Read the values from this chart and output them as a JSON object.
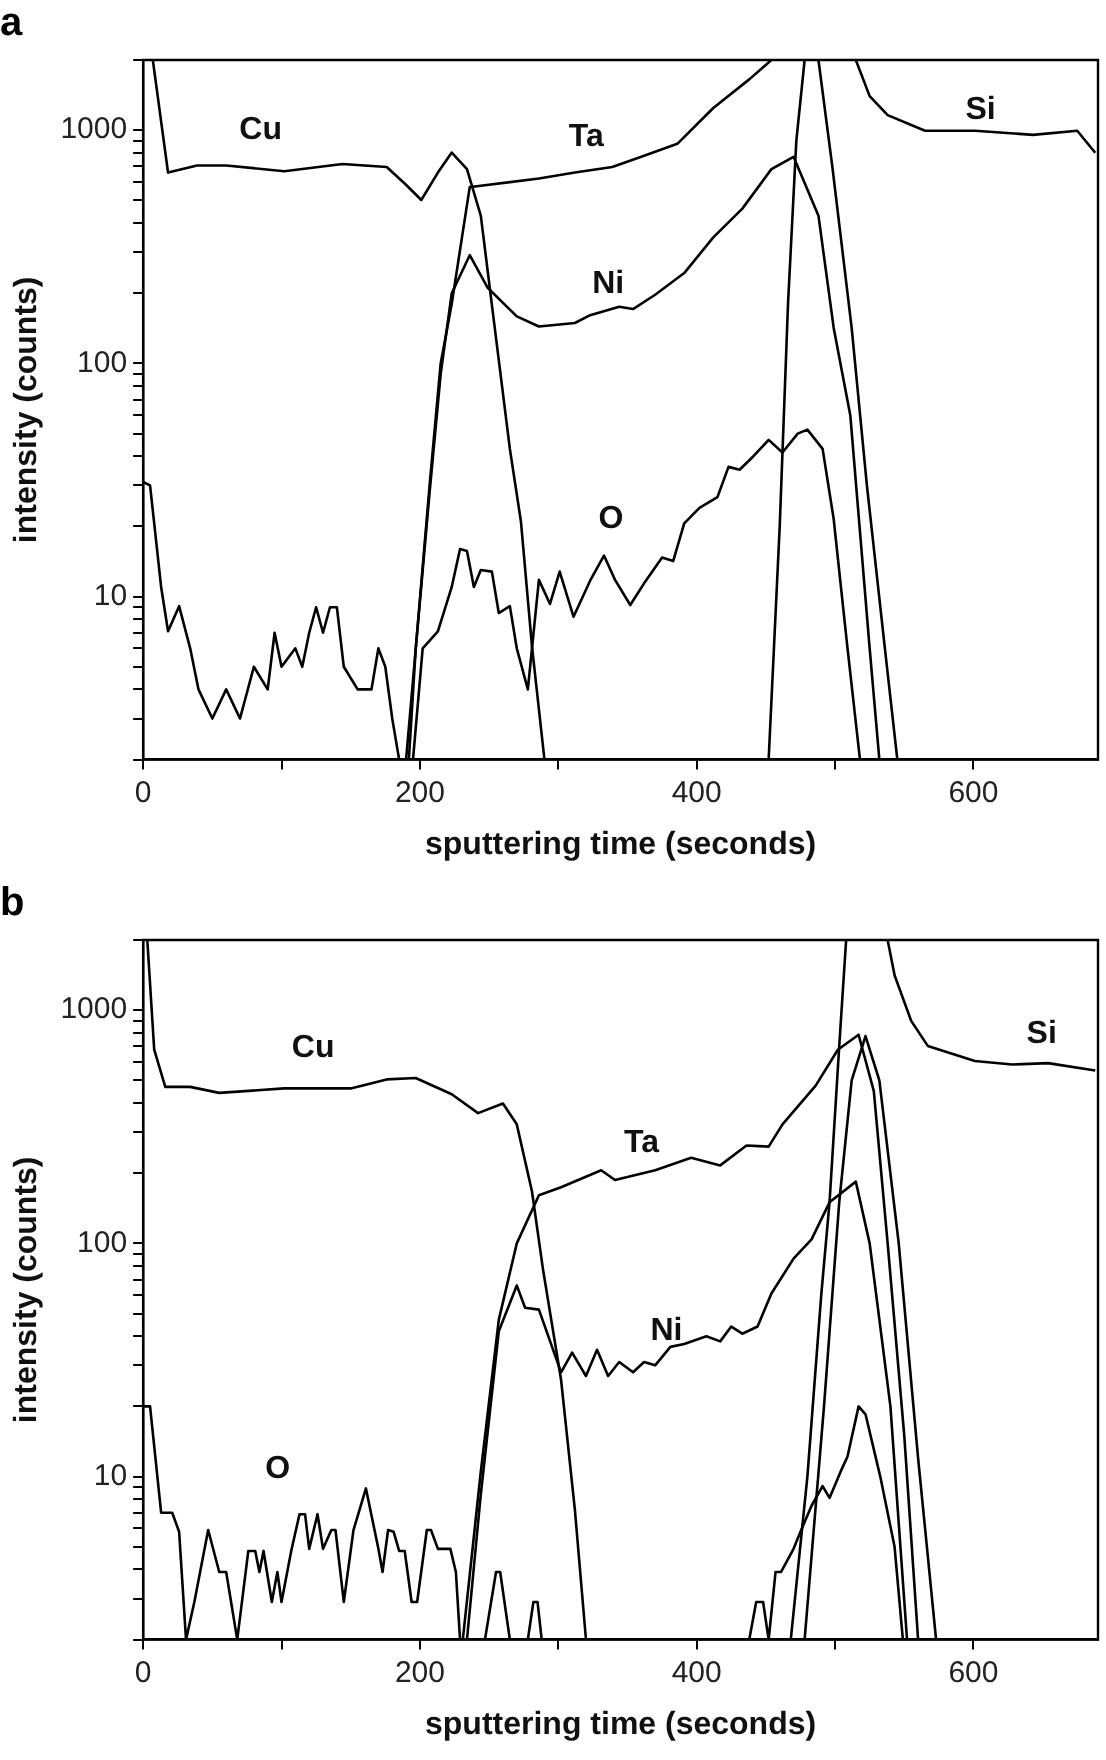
{
  "chart_data": [
    {
      "type": "line",
      "title": "a",
      "xlabel": "sputtering time (seconds)",
      "ylabel": "intensity (counts)",
      "log": "y",
      "marker": "none",
      "line_style": "solid",
      "xlim": [
        0,
        690
      ],
      "xticks": [
        0,
        {
          "value": 100,
          "label": null
        },
        200,
        {
          "value": 300,
          "label": null
        },
        400,
        {
          "value": 500,
          "label": null
        },
        600
      ],
      "ylim": [
        2,
        2000
      ],
      "yticks": [
        {
          "value": 2,
          "label": null
        },
        {
          "value": 3,
          "label": null
        },
        {
          "value": 4,
          "label": null
        },
        {
          "value": 5,
          "label": null
        },
        {
          "value": 6,
          "label": null
        },
        {
          "value": 7,
          "label": null
        },
        {
          "value": 8,
          "label": null
        },
        {
          "value": 9,
          "label": null
        },
        10,
        {
          "value": 20,
          "label": null
        },
        {
          "value": 30,
          "label": null
        },
        {
          "value": 40,
          "label": null
        },
        {
          "value": 50,
          "label": null
        },
        {
          "value": 60,
          "label": null
        },
        {
          "value": 70,
          "label": null
        },
        {
          "value": 80,
          "label": null
        },
        {
          "value": 90,
          "label": null
        },
        100,
        {
          "value": 200,
          "label": null
        },
        {
          "value": 300,
          "label": null
        },
        {
          "value": 400,
          "label": null
        },
        {
          "value": 500,
          "label": null
        },
        {
          "value": 600,
          "label": null
        },
        {
          "value": 700,
          "label": null
        },
        {
          "value": 800,
          "label": null
        },
        {
          "value": 900,
          "label": null
        },
        1000,
        {
          "value": 2000,
          "label": null
        }
      ],
      "series": [
        {
          "name": "Cu",
          "color": "#000000",
          "x": [
            7,
            18,
            39,
            60,
            102,
            144,
            176,
            189,
            201,
            213,
            223,
            234,
            244,
            253,
            265,
            273,
            281,
            290
          ],
          "values": [
            2000,
            658,
            706,
            706,
            667,
            716,
            695,
            591,
            502,
            658,
            802,
            681,
            430,
            160,
            43,
            21,
            6.1,
            2
          ]
        },
        {
          "name": "Ta",
          "color": "#000000",
          "x": [
            190,
            197,
            207,
            215,
            223,
            236,
            244,
            286,
            312,
            339,
            360,
            386,
            412,
            438,
            454,
            470,
            488,
            498,
            512,
            523,
            536,
            545
          ],
          "values": [
            2,
            6,
            30,
            100,
            180,
            570,
            578,
            621,
            658,
            695,
            769,
            874,
            1245,
            1652,
            2000,
            null,
            2000,
            700,
            142,
            30,
            6,
            2
          ]
        },
        {
          "name": "Ni",
          "color": "#000000",
          "x": [
            192,
            197,
            207,
            215,
            223,
            236,
            249,
            270,
            286,
            312,
            323,
            344,
            354,
            370,
            391,
            412,
            433,
            454,
            470,
            488,
            499,
            511,
            525,
            532
          ],
          "values": [
            2,
            6,
            28,
            90,
            200,
            291,
            211,
            159,
            144,
            149,
            161,
            175,
            171,
            197,
            244,
            347,
            461,
            681,
            769,
            430,
            142,
            60,
            6,
            2
          ]
        },
        {
          "name": "O",
          "color": "#000000",
          "x": [
            0,
            5,
            13,
            18,
            26,
            34,
            40,
            50,
            60,
            70,
            80,
            90,
            95,
            100,
            110,
            115,
            120,
            125,
            130,
            135,
            140,
            145,
            155,
            165,
            170,
            175,
            180,
            185,
            195,
            202,
            213,
            223,
            229,
            234,
            239,
            244,
            252,
            257,
            265,
            270,
            278,
            286,
            294,
            301,
            311,
            323,
            333,
            341,
            352,
            362,
            375,
            383,
            391,
            402,
            415,
            423,
            431,
            441,
            452,
            462,
            473,
            480,
            491,
            499,
            509,
            518
          ],
          "values": [
            31,
            30,
            11,
            7.1,
            9.1,
            6,
            4,
            3,
            4,
            3,
            5,
            4,
            7,
            5,
            6,
            5,
            7,
            9,
            7,
            9,
            9,
            5,
            4,
            4,
            6,
            5,
            3,
            2,
            2,
            6,
            7.1,
            11,
            16,
            15.7,
            11,
            13,
            12.8,
            8.5,
            9.1,
            6,
            4,
            11.8,
            9.3,
            12.8,
            8.2,
            11.7,
            15,
            11.8,
            9.2,
            11.4,
            14.7,
            14.2,
            20.6,
            24,
            26.7,
            36,
            35,
            40,
            47,
            41.5,
            50,
            52,
            43,
            21.5,
            6,
            2
          ]
        },
        {
          "name": "Si",
          "color": "#000000",
          "x": [
            452,
            460,
            466,
            472,
            478,
            496,
            515,
            525,
            538,
            565,
            601,
            643,
            675,
            688
          ],
          "values": [
            2,
            20,
            180,
            900,
            2000,
            null,
            2000,
            1400,
            1160,
            995,
            995,
            955,
            995,
            800
          ]
        }
      ]
    },
    {
      "type": "line",
      "title": "b",
      "xlabel": "sputtering time (seconds)",
      "ylabel": "intensity (counts)",
      "log": "y",
      "marker": "none",
      "line_style": "solid",
      "xlim": [
        0,
        690
      ],
      "xticks": [
        0,
        {
          "value": 100,
          "label": null
        },
        200,
        {
          "value": 300,
          "label": null
        },
        400,
        {
          "value": 500,
          "label": null
        },
        600
      ],
      "ylim": [
        2,
        2000
      ],
      "yticks": [
        {
          "value": 2,
          "label": null
        },
        {
          "value": 3,
          "label": null
        },
        {
          "value": 4,
          "label": null
        },
        {
          "value": 5,
          "label": null
        },
        {
          "value": 6,
          "label": null
        },
        {
          "value": 7,
          "label": null
        },
        {
          "value": 8,
          "label": null
        },
        {
          "value": 9,
          "label": null
        },
        10,
        {
          "value": 20,
          "label": null
        },
        {
          "value": 30,
          "label": null
        },
        {
          "value": 40,
          "label": null
        },
        {
          "value": 50,
          "label": null
        },
        {
          "value": 60,
          "label": null
        },
        {
          "value": 70,
          "label": null
        },
        {
          "value": 80,
          "label": null
        },
        {
          "value": 90,
          "label": null
        },
        100,
        {
          "value": 200,
          "label": null
        },
        {
          "value": 300,
          "label": null
        },
        {
          "value": 400,
          "label": null
        },
        {
          "value": 500,
          "label": null
        },
        {
          "value": 600,
          "label": null
        },
        {
          "value": 700,
          "label": null
        },
        {
          "value": 800,
          "label": null
        },
        {
          "value": 900,
          "label": null
        },
        1000,
        {
          "value": 2000,
          "label": null
        }
      ],
      "series": [
        {
          "name": "Cu",
          "color": "#000000",
          "x": [
            3,
            8,
            16,
            34,
            55,
            102,
            150,
            176,
            197,
            223,
            242,
            260,
            270,
            281,
            289,
            302,
            312,
            320
          ],
          "values": [
            2000,
            677,
            469,
            469,
            442,
            462,
            462,
            505,
            512,
            436,
            362,
            398,
            324,
            167,
            77,
            26,
            7.2,
            2
          ]
        },
        {
          "name": "Ta",
          "color": "#000000",
          "x": [
            231,
            244,
            257,
            270,
            286,
            302,
            331,
            341,
            370,
            396,
            417,
            436,
            452,
            462,
            486,
            502,
            517,
            528,
            538,
            550,
            560
          ],
          "values": [
            2,
            10.5,
            47,
            100,
            161,
            174,
            206,
            187,
            206,
            233,
            216,
            263,
            260,
            324,
            475,
            677,
            785,
            450,
            100,
            15,
            2
          ]
        },
        {
          "name": "Ni",
          "color": "#000000",
          "x": [
            234,
            244,
            257,
            270,
            276,
            286,
            302,
            310,
            320,
            328,
            336,
            344,
            354,
            362,
            370,
            381,
            391,
            407,
            417,
            425,
            433,
            444,
            454,
            470,
            483,
            496,
            515,
            525,
            540,
            552
          ],
          "values": [
            2,
            8.4,
            42,
            66,
            53,
            52,
            28,
            34,
            27,
            35,
            27,
            31,
            28,
            31,
            30,
            36,
            37,
            40,
            38,
            44,
            41,
            44,
            61,
            86,
            104,
            150,
            184,
            100,
            20,
            2
          ]
        },
        {
          "name": "O",
          "color": "#000000",
          "x": [
            0,
            5,
            13,
            21,
            26,
            31,
            37,
            47,
            55,
            60,
            68,
            76,
            81,
            84,
            87,
            93,
            97,
            100,
            107,
            113,
            117,
            120,
            126,
            130,
            136,
            139,
            145,
            152,
            161,
            170,
            173,
            177,
            181,
            185,
            189,
            194,
            198,
            205,
            208,
            213,
            222,
            226,
            229,
            247,
            255,
            258,
            265,
            278,
            282,
            285,
            288,
            360,
            438,
            443,
            448,
            452,
            457,
            461,
            470,
            475,
            483,
            491,
            496,
            504,
            509,
            517,
            522,
            533,
            543,
            549
          ],
          "values": [
            20,
            20,
            7,
            7,
            5.8,
            2,
            2.9,
            5.9,
            3.9,
            3.9,
            2,
            4.8,
            4.8,
            3.9,
            4.8,
            2.9,
            3.9,
            2.9,
            4.8,
            6.9,
            6.9,
            4.9,
            6.9,
            4.9,
            5.9,
            5.9,
            2.9,
            5.9,
            8.9,
            4.9,
            3.9,
            5.9,
            5.8,
            4.8,
            4.8,
            2.9,
            2.9,
            5.9,
            5.9,
            4.9,
            4.9,
            3.9,
            2,
            2,
            3.9,
            3.9,
            2,
            2,
            2.9,
            2.9,
            2,
            null,
            2,
            2.9,
            2.9,
            2,
            3.9,
            3.9,
            4.9,
            5.8,
            7.5,
            9.1,
            8.1,
            10.5,
            12.2,
            20,
            18.5,
            9.8,
            5,
            2
          ]
        },
        {
          "name": "Si",
          "color": "#000000",
          "x": [
            468,
            480,
            490,
            496,
            503,
            508,
            525,
            538,
            543,
            555,
            567,
            601,
            628,
            654,
            688
          ],
          "values": [
            2,
            10,
            60,
            150,
            700,
            2000,
            null,
            2000,
            1413,
            900,
            703,
            606,
            585,
            593,
            551
          ]
        },
        {
          "color": "#000000",
          "x": [
            478,
            492,
            503,
            512,
            522,
            532,
            546,
            560,
            573
          ],
          "values": [
            2,
            20,
            150,
            500,
            775,
            500,
            100,
            12,
            2
          ]
        }
      ]
    }
  ]
}
